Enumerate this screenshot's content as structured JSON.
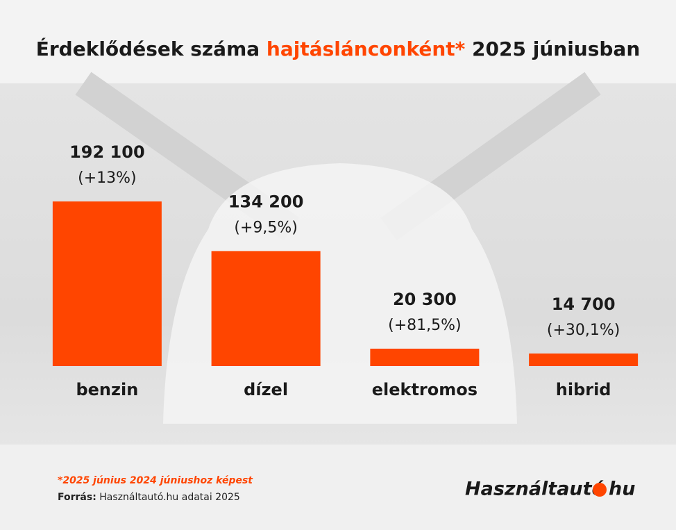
{
  "chart_data": {
    "type": "bar",
    "title_parts": [
      "Érdeklődések száma",
      "hajtáslánconként*",
      "2025 júniusban"
    ],
    "categories": [
      "benzin",
      "dízel",
      "elektromos",
      "hibrid"
    ],
    "values": [
      192100,
      134200,
      20300,
      14700
    ],
    "value_labels": [
      "192 100",
      "134 200",
      "20 300",
      "14 700"
    ],
    "change_labels": [
      "(+13%)",
      "(+9,5%)",
      "(+81,5%)",
      "(+30,1%)"
    ],
    "color": "#ff4500",
    "footnote": "*2025 június 2024 júniushoz képest",
    "source_label": "Forrás:",
    "source_text": "Használtautó.hu adatai 2025",
    "logo_text": "Használtautó",
    "logo_suffix": "hu"
  }
}
